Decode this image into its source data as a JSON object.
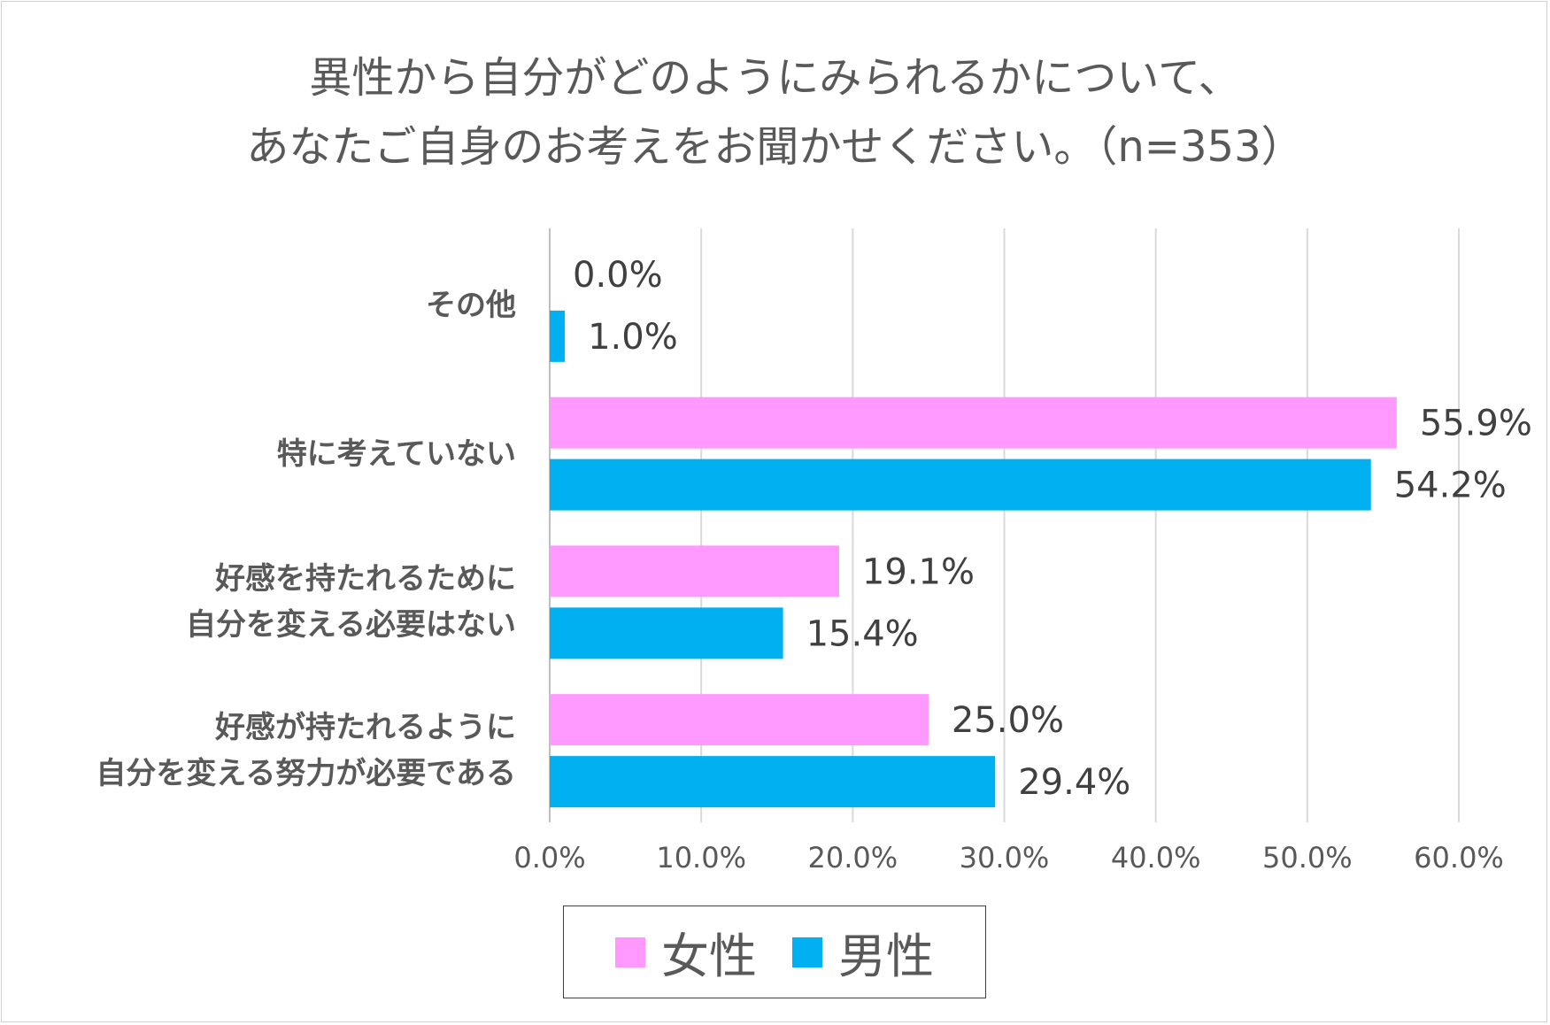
{
  "title": {
    "line1": "異性から自分がどのようにみられるかについて、",
    "line2": "あなたご自身のお考えをお聞かせください。（n=353）"
  },
  "colors": {
    "female": "#FF99FF",
    "male": "#00B0F0",
    "grid": "#d9d9d9",
    "text": "#595959"
  },
  "chart_data": {
    "type": "bar",
    "orientation": "horizontal",
    "title": "異性から自分がどのようにみられるかについて、あなたご自身のお考えをお聞かせください。（n=353）",
    "categories": [
      [
        "その他"
      ],
      [
        "特に考えていない"
      ],
      [
        "好感を持たれるために",
        "自分を変える必要はない"
      ],
      [
        "好感が持たれるように",
        "自分を変える努力が必要である"
      ]
    ],
    "series": [
      {
        "name": "女性",
        "values": [
          0.0,
          55.9,
          19.1,
          25.0
        ],
        "labels": [
          "0.0%",
          "55.9%",
          "19.1%",
          "25.0%"
        ]
      },
      {
        "name": "男性",
        "values": [
          1.0,
          54.2,
          15.4,
          29.4
        ],
        "labels": [
          "1.0%",
          "54.2%",
          "15.4%",
          "29.4%"
        ]
      }
    ],
    "xlim": [
      0,
      60
    ],
    "ticks": [
      "0.0%",
      "10.0%",
      "20.0%",
      "30.0%",
      "40.0%",
      "50.0%",
      "60.0%"
    ],
    "grid": true,
    "legend_position": "bottom"
  },
  "legend": {
    "female_label": "女性",
    "male_label": "男性"
  }
}
